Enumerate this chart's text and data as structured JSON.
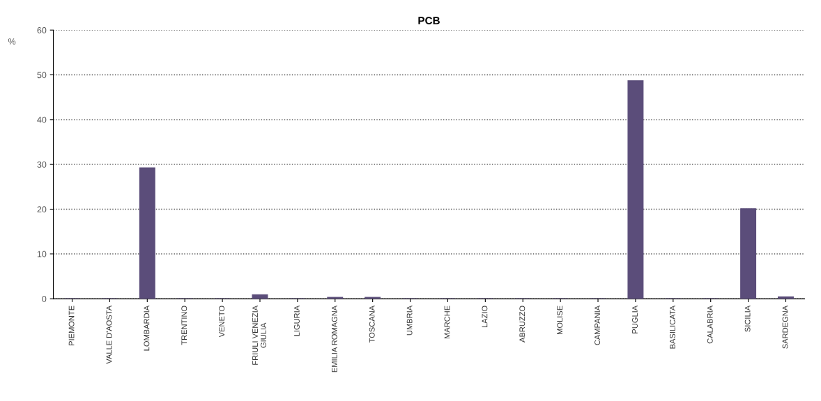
{
  "chart_data": {
    "type": "bar",
    "title": "PCB",
    "ylabel": "%",
    "categories": [
      "PIEMONTE",
      "VALLE D'AOSTA",
      "LOMBARDIA",
      "TRENTINO",
      "VENETO",
      "FRIULI VENEZIA\nGIULIA",
      "LIGURIA",
      "EMILIA ROMAGNA",
      "TOSCANA",
      "UMBRIA",
      "MARCHE",
      "LAZIO",
      "ABRUZZO",
      "MOLISE",
      "CAMPANIA",
      "PUGLIA",
      "BASILICATA",
      "CALABRIA",
      "SICILIA",
      "SARDEGNA"
    ],
    "values": [
      0,
      0,
      29.2,
      0,
      0,
      0.9,
      0,
      0.3,
      0.3,
      0,
      0,
      0,
      0,
      0,
      0,
      48.7,
      0,
      0,
      20.1,
      0.4
    ],
    "color": "#5b4d7a",
    "ylim": [
      0,
      60
    ],
    "yticks": [
      0,
      10,
      20,
      30,
      40,
      50,
      60
    ],
    "grid": "y"
  }
}
